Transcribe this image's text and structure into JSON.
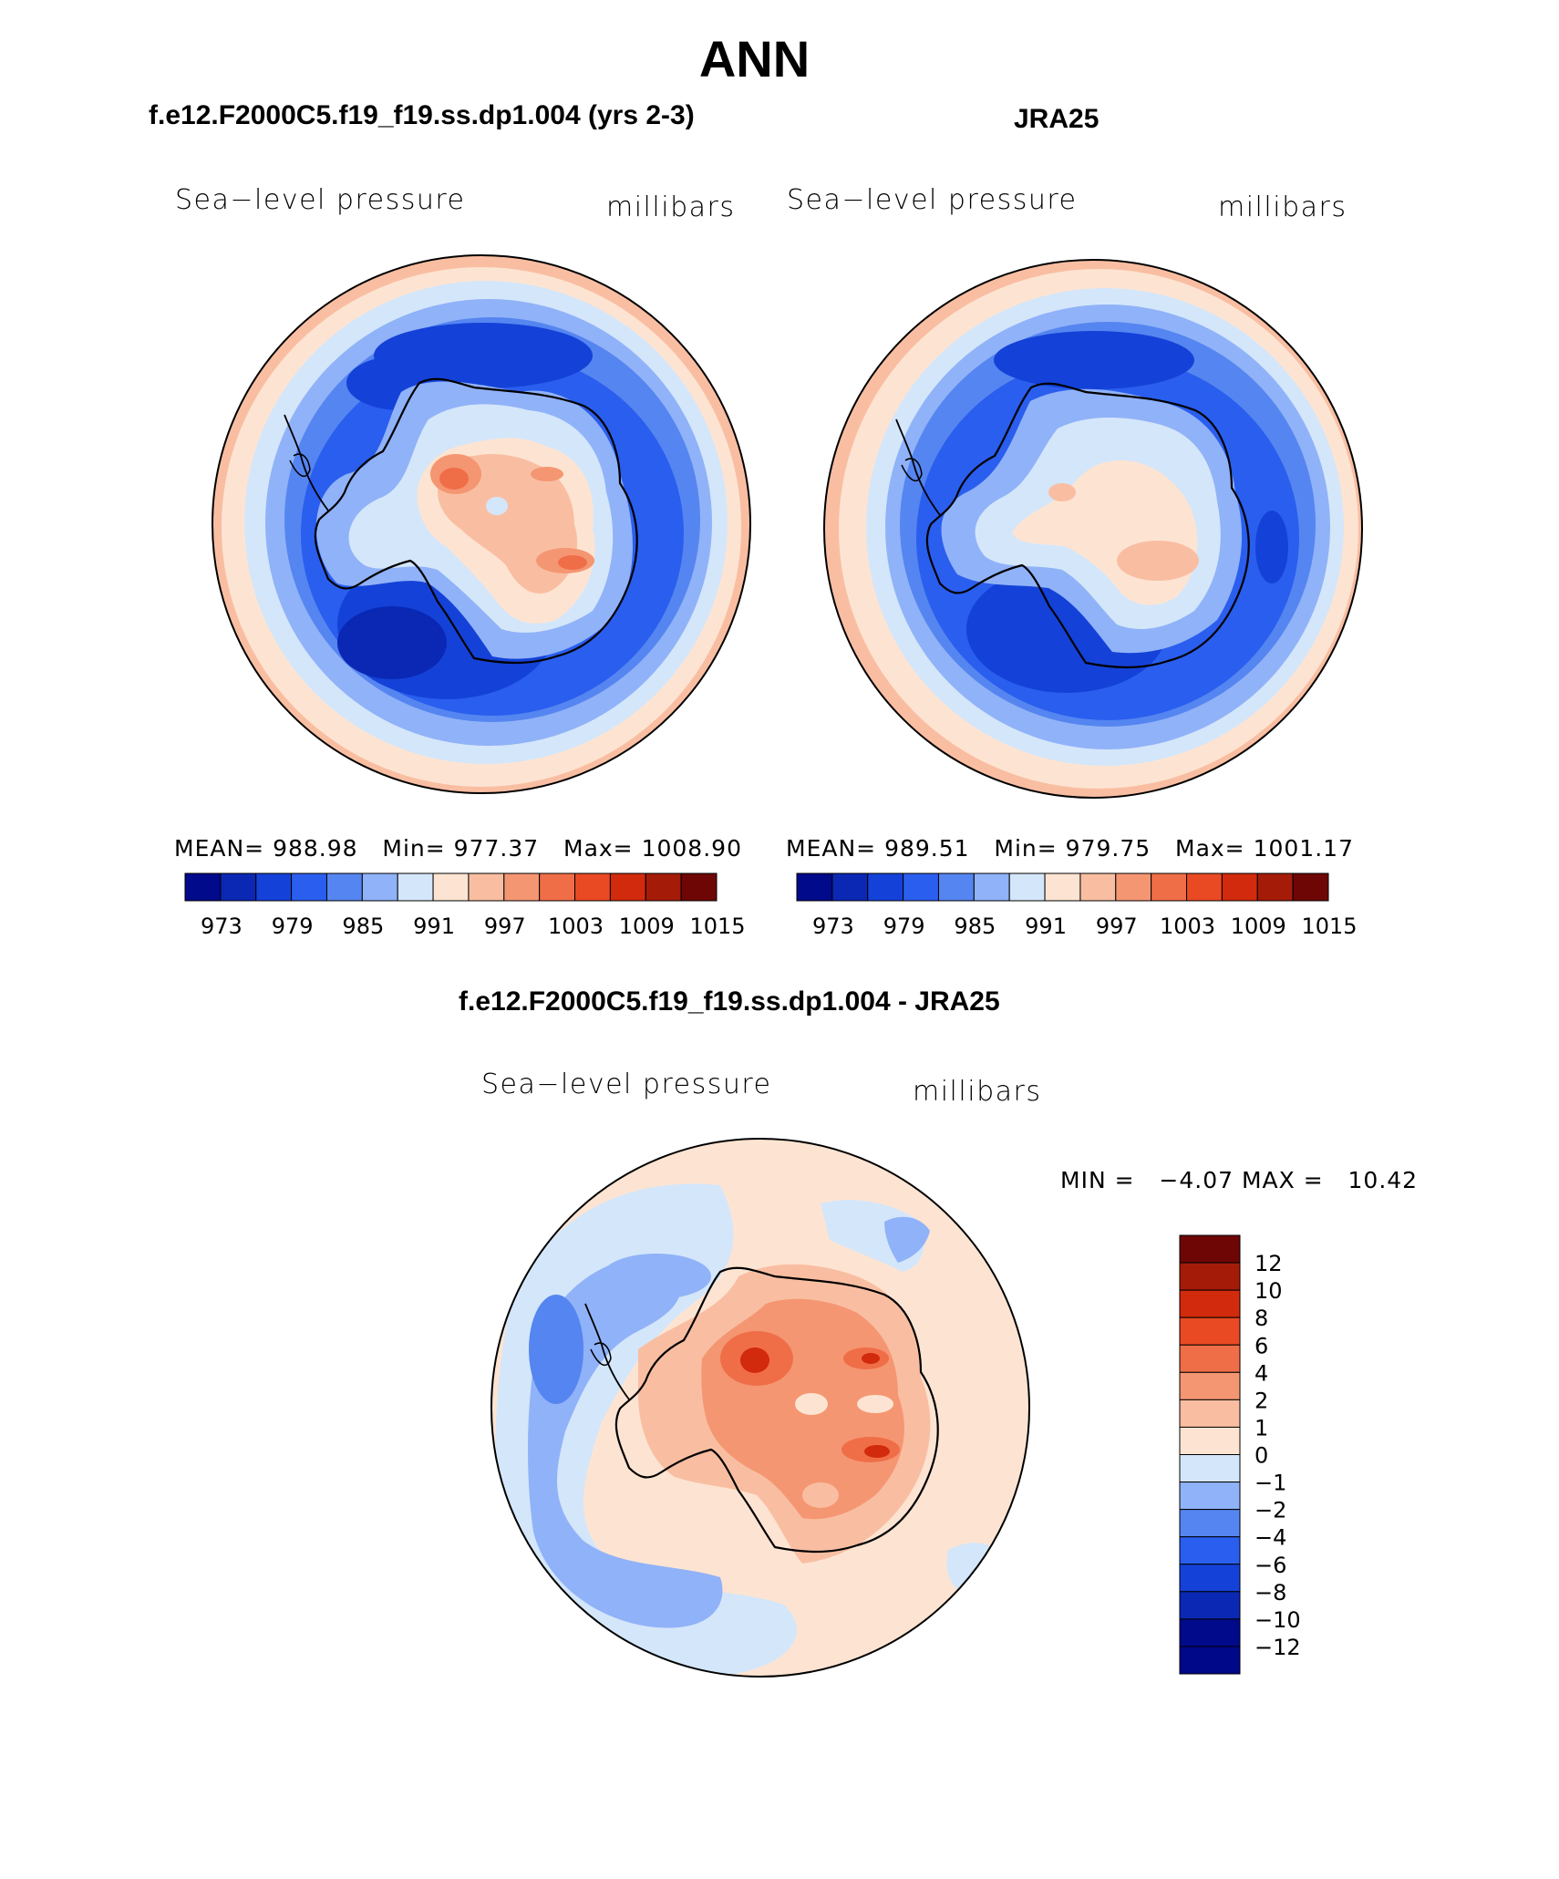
{
  "title": "ANN",
  "panels": [
    {
      "subtitle": "f.e12.F2000C5.f19_f19.ss.dp1.004 (yrs 2-3)",
      "variable_label": "Sea−level pressure",
      "units_label": "millibars",
      "stats": {
        "mean_label": "MEAN=",
        "mean": "988.98",
        "min_label": "Min=",
        "min": "977.37",
        "max_label": "Max=",
        "max": "1008.90"
      }
    },
    {
      "subtitle": "JRA25",
      "variable_label": "Sea−level pressure",
      "units_label": "millibars",
      "stats": {
        "mean_label": "MEAN=",
        "mean": "989.51",
        "min_label": "Min=",
        "min": "979.75",
        "max_label": "Max=",
        "max": "1001.17"
      }
    },
    {
      "subtitle": "f.e12.F2000C5.f19_f19.ss.dp1.004 - JRA25",
      "variable_label": "Sea−level pressure",
      "units_label": "millibars",
      "stats": {
        "min_label": "MIN =",
        "min": "−4.07",
        "max_label": "MAX =",
        "max": "10.42"
      }
    }
  ],
  "chart_data": [
    {
      "type": "heatmap",
      "title": "f.e12.F2000C5.f19_f19.ss.dp1.004 (yrs 2-3)",
      "projection": "south polar stereographic",
      "units": "millibars",
      "colorbar_levels": [
        "973",
        "979",
        "985",
        "991",
        "997",
        "1003",
        "1009",
        "1015"
      ],
      "colors": [
        "#000a8a",
        "#0a28b4",
        "#1442d8",
        "#2a5eee",
        "#5585f0",
        "#90b2f8",
        "#d4e6fa",
        "#fde4d2",
        "#f9bea2",
        "#f59672",
        "#ef6e48",
        "#e94a24",
        "#d22a0c",
        "#a41c08",
        "#6e0606"
      ],
      "mean": 988.98,
      "min": 977.37,
      "max": 1008.9
    },
    {
      "type": "heatmap",
      "title": "JRA25",
      "projection": "south polar stereographic",
      "units": "millibars",
      "colorbar_levels": [
        "973",
        "979",
        "985",
        "991",
        "997",
        "1003",
        "1009",
        "1015"
      ],
      "colors": [
        "#000a8a",
        "#0a28b4",
        "#1442d8",
        "#2a5eee",
        "#5585f0",
        "#90b2f8",
        "#d4e6fa",
        "#fde4d2",
        "#f9bea2",
        "#f59672",
        "#ef6e48",
        "#e94a24",
        "#d22a0c",
        "#a41c08",
        "#6e0606"
      ],
      "mean": 989.51,
      "min": 979.75,
      "max": 1001.17
    },
    {
      "type": "heatmap",
      "title": "f.e12.F2000C5.f19_f19.ss.dp1.004 - JRA25",
      "projection": "south polar stereographic",
      "units": "millibars",
      "colorbar_levels": [
        "12",
        "10",
        "8",
        "6",
        "4",
        "2",
        "1",
        "0",
        "−1",
        "−2",
        "−4",
        "−6",
        "−8",
        "−10",
        "−12"
      ],
      "colors": [
        "#6e0606",
        "#a41c08",
        "#d22a0c",
        "#e94a24",
        "#ef6e48",
        "#f59672",
        "#f9bea2",
        "#fde4d2",
        "#d4e6fa",
        "#90b2f8",
        "#5585f0",
        "#2a5eee",
        "#1442d8",
        "#0a28b4",
        "#000a8a",
        "#00088a"
      ],
      "min": -4.07,
      "max": 10.42
    }
  ]
}
